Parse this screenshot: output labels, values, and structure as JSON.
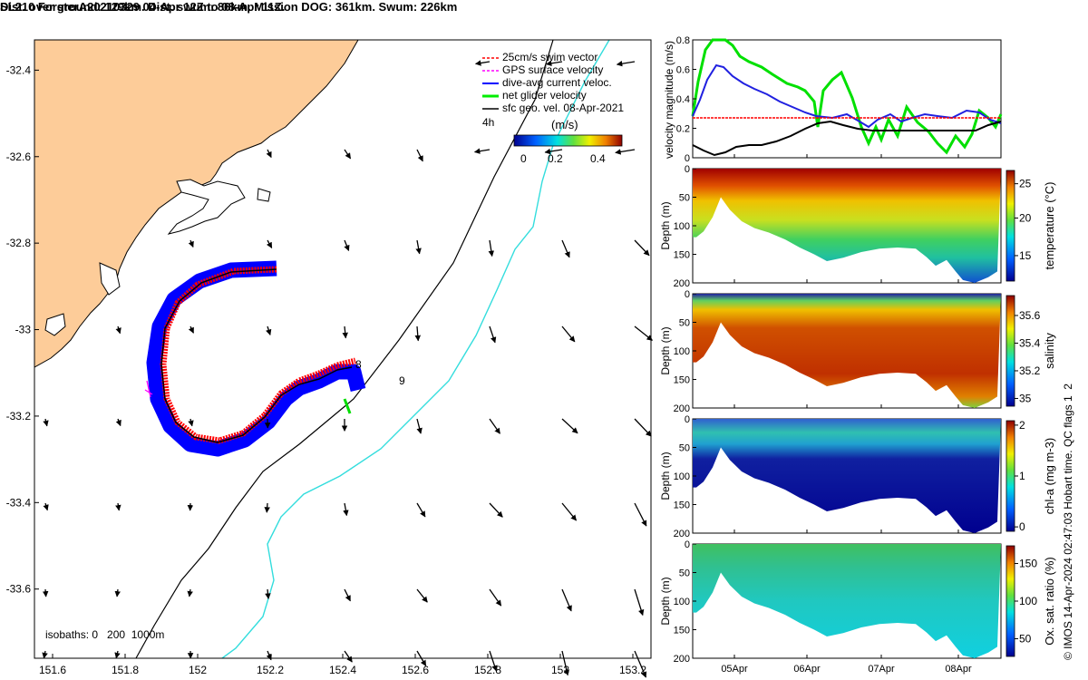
{
  "title_line1": "SL210 ForsterA20210329 04-Apr 12Z to 08-Apr 11Z.",
  "title_line2": "Dist. over ground: 129km. Dist. swum: 86km. Mission DOG: 361km. Swum: 226km",
  "chart_data": [
    {
      "type": "map",
      "x_ticks": [
        "151.6",
        "151.8",
        "152",
        "152.2",
        "152.4",
        "152.6",
        "152.8",
        "153",
        "153.2"
      ],
      "y_ticks": [
        "-32.4",
        "-32.6",
        "-32.8",
        "-33",
        "-33.2",
        "-33.4",
        "-33.6"
      ],
      "xlim": [
        151.55,
        153.25
      ],
      "ylim": [
        -33.76,
        -32.33
      ],
      "legend": {
        "entries": [
          {
            "label": "25cm/s swim vector",
            "color": "#ff0000"
          },
          {
            "label": "GPS surface velocity",
            "color": "#ff00ff"
          },
          {
            "label": "dive-avg current veloc.",
            "color": "#0000ff"
          },
          {
            "label": "net glider velocity",
            "color": "#00ee00"
          },
          {
            "label": "sfc geo. vel. 08-Apr-2021",
            "color": "#000000"
          }
        ],
        "time_label": "4h",
        "colorbar_label": "(m/s)",
        "colorbar_ticks": [
          "0",
          "0.2",
          "0.4"
        ]
      },
      "isobaths_label": "isobaths: 0   200  1000m",
      "day_labels": [
        "8",
        "9"
      ],
      "colors": {
        "land": "#fdcc99",
        "isobath_200": "#000000",
        "isobath_1000": "#33dddd",
        "track_blue": "#0000ff",
        "track_red": "#ff0000"
      }
    },
    {
      "type": "line",
      "ylabel": "velocity magnitude (m/s)",
      "y_ticks": [
        "0",
        "0.2",
        "0.4",
        "0.6",
        "0.8"
      ],
      "ylim": [
        0,
        0.8
      ],
      "x_ticks": [
        "05Apr",
        "06Apr",
        "07Apr",
        "08Apr"
      ],
      "series_colors": [
        "#00e000",
        "#2020e0",
        "#000000",
        "#ff0000"
      ],
      "reference_speed": 0.25
    },
    {
      "type": "heatmap",
      "ylabel": "Depth (m)",
      "y_ticks": [
        "0",
        "50",
        "100",
        "150",
        "200"
      ],
      "colorbar_label": "temperature (°C)",
      "colorbar_ticks": [
        "25",
        "20",
        "15"
      ]
    },
    {
      "type": "heatmap",
      "ylabel": "Depth (m)",
      "y_ticks": [
        "0",
        "50",
        "100",
        "150",
        "200"
      ],
      "colorbar_label": "salinity",
      "colorbar_ticks": [
        "35.6",
        "35.4",
        "35.2",
        "35"
      ]
    },
    {
      "type": "heatmap",
      "ylabel": "Depth (m)",
      "y_ticks": [
        "0",
        "50",
        "100",
        "150",
        "200"
      ],
      "colorbar_label": "chl-a (mg m-3)",
      "colorbar_ticks": [
        "2",
        "1",
        "0"
      ]
    },
    {
      "type": "heatmap",
      "ylabel": "Depth (m)",
      "y_ticks": [
        "0",
        "50",
        "100",
        "150",
        "200"
      ],
      "colorbar_label": "Ox. sat. ratio (%)",
      "colorbar_ticks": [
        "150",
        "100",
        "50"
      ],
      "x_ticks": [
        "05Apr",
        "06Apr",
        "07Apr",
        "08Apr"
      ]
    }
  ],
  "footer_note": "© IMOS 14-Apr-2024 02:47:03 Hobart time. QC flags 1  2"
}
